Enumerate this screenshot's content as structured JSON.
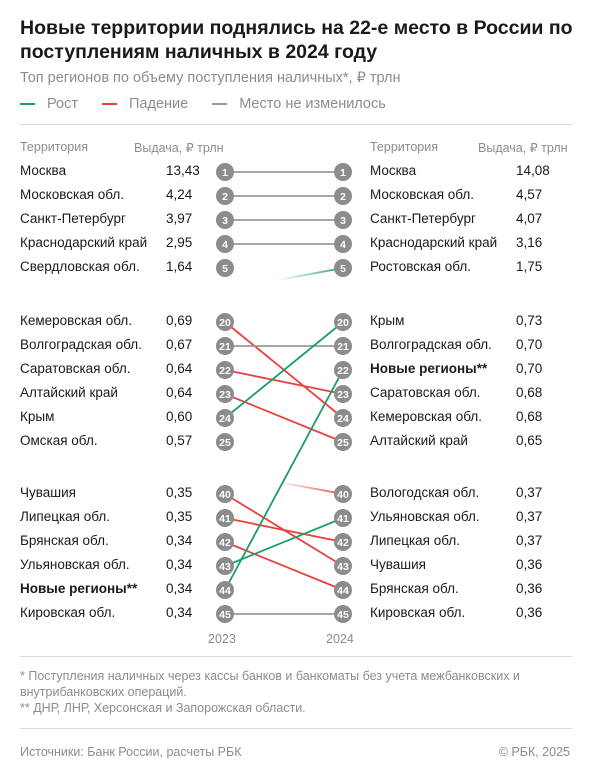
{
  "header": {
    "title": "Новые территории поднялись на 22-е место в России по поступлениям наличных в 2024 году",
    "subtitle": "Топ регионов по объему поступления наличных*, ₽ трлн"
  },
  "legend": [
    {
      "label": "Рост",
      "color": "#1a9e6a"
    },
    {
      "label": "Падение",
      "color": "#e8413d"
    },
    {
      "label": "Место не изменилось",
      "color": "#9a9a9a"
    }
  ],
  "columns": {
    "left_territory": "Территория",
    "left_value": "Выдача, ₽ трлн",
    "right_territory": "Территория",
    "right_value": "Выдача, ₽ трлн"
  },
  "chart_data": {
    "type": "slope",
    "x": [
      "2023",
      "2024"
    ],
    "colors": {
      "up": "#1a9e6a",
      "down": "#e8413d",
      "same": "#9a9a9a",
      "badge": "#8c8c8c"
    },
    "groups": [
      {
        "left": [
          {
            "rank": 1,
            "name": "Москва",
            "value": "13,43"
          },
          {
            "rank": 2,
            "name": "Московская обл.",
            "value": "4,24"
          },
          {
            "rank": 3,
            "name": "Санкт-Петербург",
            "value": "3,97"
          },
          {
            "rank": 4,
            "name": "Краснодарский край",
            "value": "2,95"
          },
          {
            "rank": 5,
            "name": "Свердловская обл.",
            "value": "1,64"
          }
        ],
        "right": [
          {
            "rank": 1,
            "name": "Москва",
            "value": "14,08"
          },
          {
            "rank": 2,
            "name": "Московская обл.",
            "value": "4,57"
          },
          {
            "rank": 3,
            "name": "Санкт-Петербург",
            "value": "4,07"
          },
          {
            "rank": 4,
            "name": "Краснодарский край",
            "value": "3,16"
          },
          {
            "rank": 5,
            "name": "Ростовская обл.",
            "value": "1,75"
          }
        ],
        "links": [
          {
            "from": 1,
            "to": 1,
            "type": "same"
          },
          {
            "from": 2,
            "to": 2,
            "type": "same"
          },
          {
            "from": 3,
            "to": 3,
            "type": "same"
          },
          {
            "from": 4,
            "to": 4,
            "type": "same"
          },
          {
            "from": null,
            "to": 5,
            "type": "up"
          }
        ]
      },
      {
        "left": [
          {
            "rank": 20,
            "name": "Кемеровская обл.",
            "value": "0,69"
          },
          {
            "rank": 21,
            "name": "Волгоградская обл.",
            "value": "0,67"
          },
          {
            "rank": 22,
            "name": "Саратовская обл.",
            "value": "0,64"
          },
          {
            "rank": 23,
            "name": "Алтайский край",
            "value": "0,64"
          },
          {
            "rank": 24,
            "name": "Крым",
            "value": "0,60"
          },
          {
            "rank": 25,
            "name": "Омская обл.",
            "value": "0,57"
          }
        ],
        "right": [
          {
            "rank": 20,
            "name": "Крым",
            "value": "0,73"
          },
          {
            "rank": 21,
            "name": "Волгоградская обл.",
            "value": "0,70"
          },
          {
            "rank": 22,
            "name": "Новые регионы**",
            "value": "0,70",
            "bold": true
          },
          {
            "rank": 23,
            "name": "Саратовская обл.",
            "value": "0,68"
          },
          {
            "rank": 24,
            "name": "Кемеровская обл.",
            "value": "0,68"
          },
          {
            "rank": 25,
            "name": "Алтайский край",
            "value": "0,65"
          }
        ],
        "links": [
          {
            "from": 20,
            "to": 24,
            "type": "down"
          },
          {
            "from": 21,
            "to": 21,
            "type": "same"
          },
          {
            "from": 22,
            "to": 23,
            "type": "down"
          },
          {
            "from": 23,
            "to": 25,
            "type": "down"
          },
          {
            "from": 24,
            "to": 20,
            "type": "up"
          }
        ]
      },
      {
        "left": [
          {
            "rank": 40,
            "name": "Чувашия",
            "value": "0,35"
          },
          {
            "rank": 41,
            "name": "Липецкая обл.",
            "value": "0,35"
          },
          {
            "rank": 42,
            "name": "Брянская обл.",
            "value": "0,34"
          },
          {
            "rank": 43,
            "name": "Ульяновская обл.",
            "value": "0,34"
          },
          {
            "rank": 44,
            "name": "Новые регионы**",
            "value": "0,34",
            "bold": true
          },
          {
            "rank": 45,
            "name": "Кировская обл.",
            "value": "0,34"
          }
        ],
        "right": [
          {
            "rank": 40,
            "name": "Вологодская обл.",
            "value": "0,37"
          },
          {
            "rank": 41,
            "name": "Ульяновская обл.",
            "value": "0,37"
          },
          {
            "rank": 42,
            "name": "Липецкая обл.",
            "value": "0,37"
          },
          {
            "rank": 43,
            "name": "Чувашия",
            "value": "0,36"
          },
          {
            "rank": 44,
            "name": "Брянская обл.",
            "value": "0,36"
          },
          {
            "rank": 45,
            "name": "Кировская обл.",
            "value": "0,36"
          }
        ],
        "links": [
          {
            "from": null,
            "to": 40,
            "type": "down"
          },
          {
            "from": 40,
            "to": 43,
            "type": "down"
          },
          {
            "from": 41,
            "to": 42,
            "type": "down"
          },
          {
            "from": 42,
            "to": 44,
            "type": "down"
          },
          {
            "from": 43,
            "to": 41,
            "type": "up"
          },
          {
            "from": 44,
            "to": 22,
            "type": "up"
          },
          {
            "from": 45,
            "to": 45,
            "type": "same"
          }
        ]
      }
    ]
  },
  "footnotes": {
    "note1": "* Поступления наличных через кассы банков и банкоматы без учета межбанковских и внутрибанковских операций.",
    "note2": "** ДНР, ЛНР, Херсонская и Запорожская области."
  },
  "footer": {
    "source": "Источники: Банк России, расчеты РБК",
    "copyright": "© РБК, 2025"
  }
}
